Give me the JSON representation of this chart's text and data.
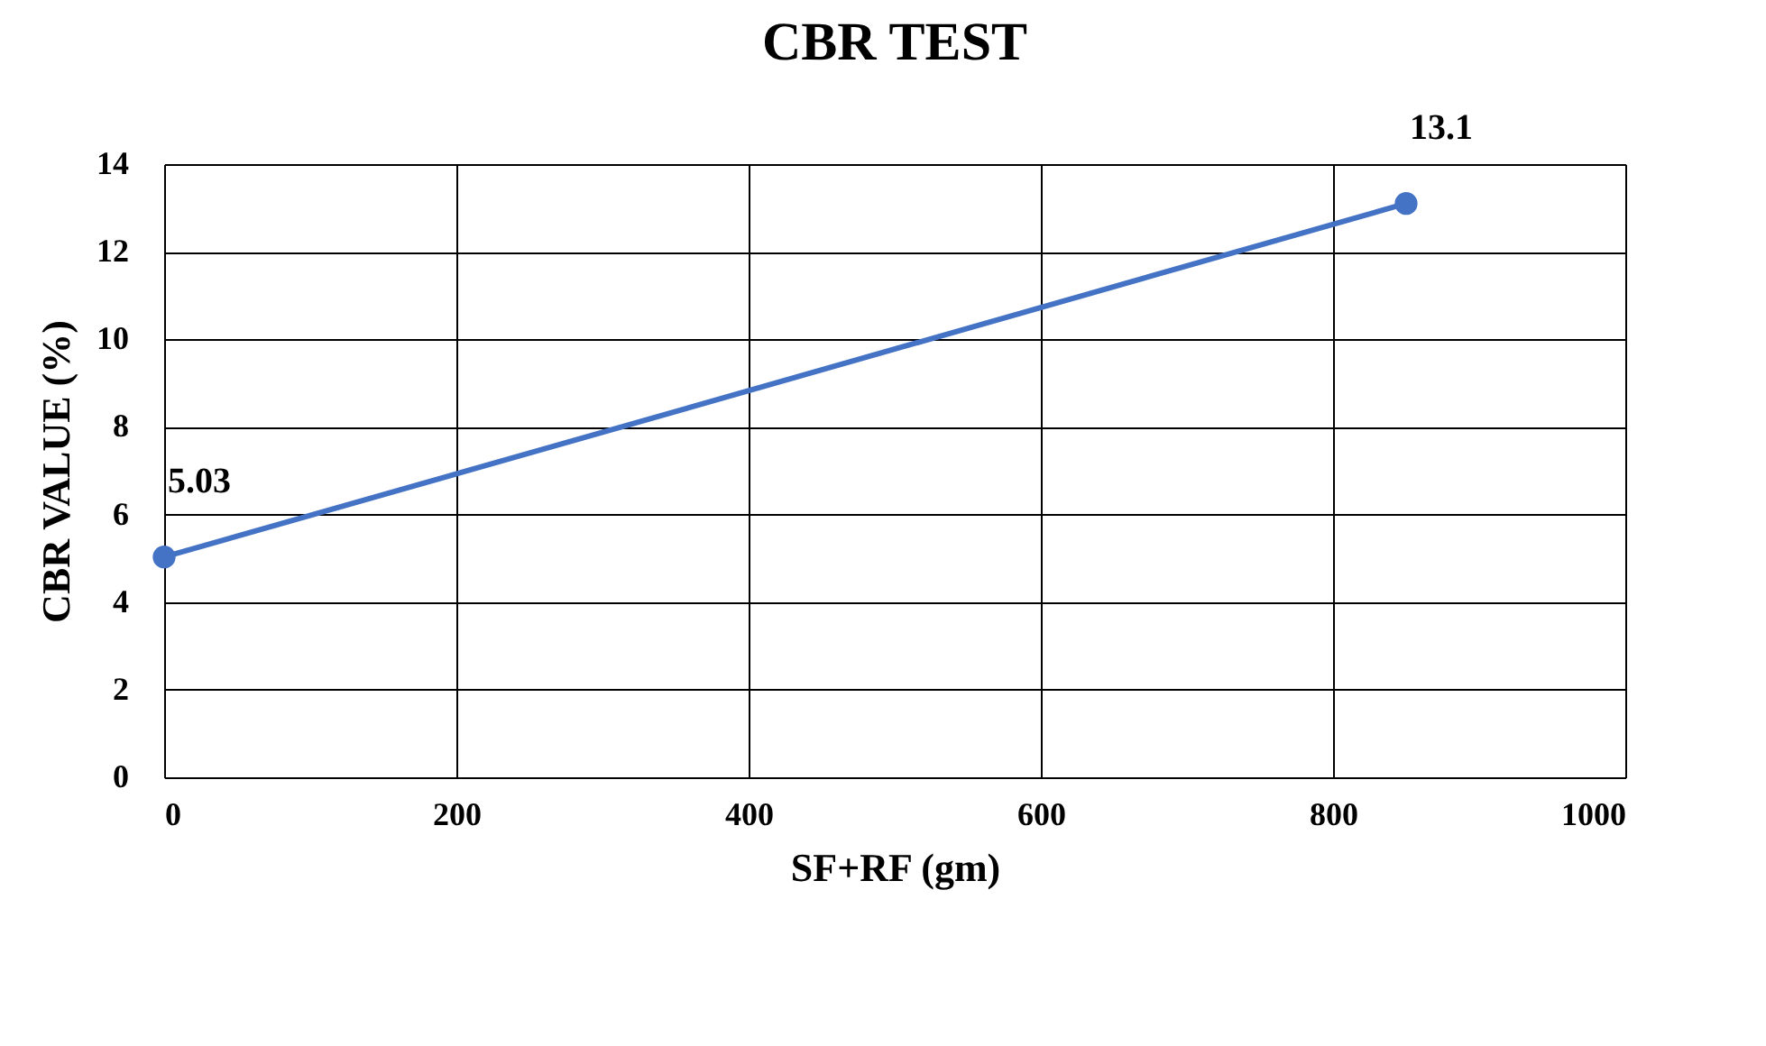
{
  "chart_data": {
    "type": "line",
    "title": "CBR TEST",
    "xlabel": "SF+RF (gm)",
    "ylabel": "CBR VALUE (%)",
    "x": [
      0,
      850
    ],
    "series": [
      {
        "color": "#4472c4",
        "values": [
          5.03,
          13.1
        ]
      }
    ],
    "xlim": [
      0,
      1000
    ],
    "xticks": [
      0,
      200,
      400,
      600,
      800,
      1000
    ],
    "ylim": [
      0,
      14
    ],
    "yticks": [
      0,
      2,
      4,
      6,
      8,
      10,
      12,
      14
    ],
    "grid": true,
    "marker": "circle",
    "line_style": "solid",
    "data_labels": true
  }
}
